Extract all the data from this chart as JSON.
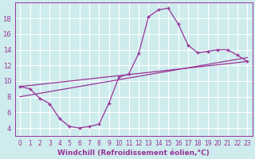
{
  "background_color": "#ceeced",
  "grid_color": "#aadddd",
  "line_color": "#993399",
  "xlabel": "Windchill (Refroidissement éolien,°C)",
  "xlim": [
    -0.5,
    23.5
  ],
  "ylim": [
    3.0,
    20.0
  ],
  "yticks": [
    4,
    6,
    8,
    10,
    12,
    14,
    16,
    18
  ],
  "xticks": [
    0,
    1,
    2,
    3,
    4,
    5,
    6,
    7,
    8,
    9,
    10,
    11,
    12,
    13,
    14,
    15,
    16,
    17,
    18,
    19,
    20,
    21,
    22,
    23
  ],
  "curve1_x": [
    0,
    1,
    2,
    3,
    4,
    5,
    6,
    7,
    8,
    9,
    10,
    11,
    12,
    13,
    14,
    15,
    16,
    17,
    18,
    19,
    20,
    21,
    22,
    23
  ],
  "curve1_y": [
    9.3,
    9.0,
    7.8,
    7.1,
    5.2,
    4.2,
    4.0,
    4.2,
    4.5,
    7.2,
    10.5,
    10.9,
    13.5,
    18.2,
    19.1,
    19.3,
    17.3,
    14.6,
    13.6,
    13.8,
    14.0,
    14.0,
    13.3,
    12.5
  ],
  "curve2_x": [
    0,
    23
  ],
  "curve2_y": [
    9.3,
    12.5
  ],
  "curve3_x": [
    0,
    23
  ],
  "curve3_y": [
    8.0,
    13.0
  ],
  "tick_fontsize": 5.5,
  "xlabel_fontsize": 6.5
}
